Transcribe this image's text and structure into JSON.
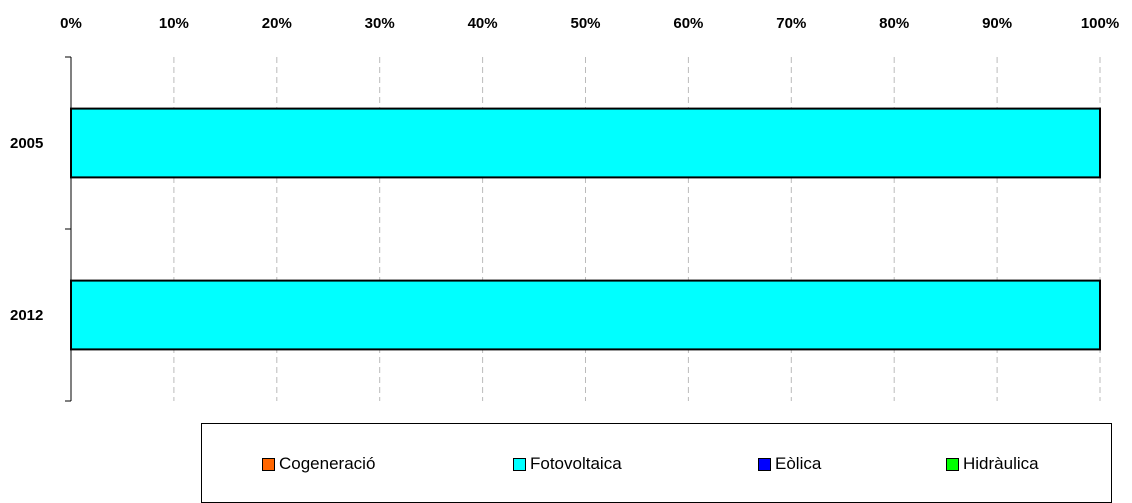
{
  "chart_data": {
    "type": "bar",
    "orientation": "horizontal",
    "stacked": true,
    "percent": true,
    "categories": [
      "2005",
      "2012"
    ],
    "series": [
      {
        "name": "Cogeneració",
        "color": "#FF6600",
        "values": [
          0,
          0
        ]
      },
      {
        "name": "Fotovoltaica",
        "color": "#00FFFF",
        "values": [
          100,
          100
        ]
      },
      {
        "name": "Eòlica",
        "color": "#0000FF",
        "values": [
          0,
          0
        ]
      },
      {
        "name": "Hidràulica",
        "color": "#00FF00",
        "values": [
          0,
          0
        ]
      }
    ],
    "x_ticks": [
      "0%",
      "10%",
      "20%",
      "30%",
      "40%",
      "50%",
      "60%",
      "70%",
      "80%",
      "90%",
      "100%"
    ],
    "xlim": [
      0,
      100
    ],
    "x_axis_position": "top",
    "grid": "vertical dashed",
    "legend_position": "bottom"
  }
}
